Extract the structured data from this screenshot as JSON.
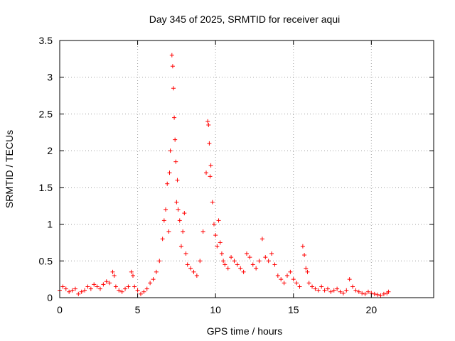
{
  "chart_data": {
    "type": "scatter",
    "title": "Day 345 of 2025, SRMTID for receiver aqui",
    "xlabel": "GPS time / hours",
    "ylabel": "SRMTID / TECUs",
    "xlim": [
      0,
      24
    ],
    "ylim": [
      0,
      3.5
    ],
    "xticks": [
      0,
      5,
      10,
      15,
      20
    ],
    "xtick_labels": [
      "0",
      "5",
      "10",
      "15",
      "20"
    ],
    "yticks": [
      0,
      0.5,
      1,
      1.5,
      2,
      2.5,
      3,
      3.5
    ],
    "ytick_labels": [
      "0",
      "0.5",
      "1",
      "1.5",
      "2",
      "2.5",
      "3",
      "3.5"
    ],
    "grid": true,
    "marker": "+",
    "series": [
      {
        "name": "SRMTID",
        "color": "#ff0000",
        "x": [
          0.0,
          0.2,
          0.4,
          0.6,
          0.8,
          1.0,
          1.2,
          1.4,
          1.6,
          1.8,
          2.0,
          2.2,
          2.4,
          2.6,
          2.8,
          3.0,
          3.2,
          3.4,
          3.5,
          3.6,
          3.8,
          4.0,
          4.2,
          4.4,
          4.6,
          4.7,
          4.8,
          5.0,
          5.2,
          5.4,
          5.6,
          5.8,
          6.0,
          6.2,
          6.4,
          6.6,
          6.7,
          6.8,
          6.9,
          7.0,
          7.05,
          7.1,
          7.2,
          7.25,
          7.3,
          7.35,
          7.4,
          7.45,
          7.5,
          7.55,
          7.6,
          7.7,
          7.8,
          7.9,
          8.0,
          8.1,
          8.2,
          8.4,
          8.6,
          8.8,
          9.0,
          9.2,
          9.4,
          9.5,
          9.55,
          9.6,
          9.65,
          9.7,
          9.8,
          9.9,
          10.0,
          10.1,
          10.2,
          10.3,
          10.4,
          10.5,
          10.6,
          10.8,
          11.0,
          11.2,
          11.4,
          11.6,
          11.8,
          12.0,
          12.2,
          12.4,
          12.6,
          12.8,
          13.0,
          13.2,
          13.4,
          13.6,
          13.8,
          14.0,
          14.2,
          14.4,
          14.6,
          14.8,
          15.0,
          15.2,
          15.4,
          15.6,
          15.7,
          15.8,
          15.9,
          16.0,
          16.2,
          16.4,
          16.6,
          16.8,
          17.0,
          17.2,
          17.4,
          17.6,
          17.8,
          18.0,
          18.2,
          18.4,
          18.6,
          18.8,
          19.0,
          19.2,
          19.4,
          19.6,
          19.8,
          20.0,
          20.2,
          20.4,
          20.6,
          20.8,
          21.0,
          21.1
        ],
        "y": [
          0.1,
          0.15,
          0.12,
          0.08,
          0.1,
          0.12,
          0.05,
          0.08,
          0.1,
          0.15,
          0.12,
          0.18,
          0.15,
          0.12,
          0.18,
          0.22,
          0.2,
          0.35,
          0.3,
          0.15,
          0.1,
          0.08,
          0.12,
          0.15,
          0.35,
          0.3,
          0.15,
          0.1,
          0.05,
          0.08,
          0.12,
          0.2,
          0.25,
          0.35,
          0.5,
          0.8,
          1.05,
          1.2,
          1.55,
          0.9,
          1.7,
          2.0,
          3.3,
          3.15,
          2.85,
          2.45,
          2.15,
          1.85,
          1.3,
          1.6,
          1.2,
          1.05,
          0.7,
          0.9,
          1.15,
          0.6,
          0.45,
          0.4,
          0.35,
          0.3,
          0.5,
          0.9,
          1.7,
          2.4,
          2.35,
          2.1,
          1.65,
          1.8,
          1.3,
          1.0,
          0.85,
          0.7,
          1.05,
          0.75,
          0.6,
          0.5,
          0.45,
          0.4,
          0.55,
          0.5,
          0.45,
          0.4,
          0.35,
          0.6,
          0.55,
          0.45,
          0.4,
          0.5,
          0.8,
          0.55,
          0.5,
          0.6,
          0.45,
          0.3,
          0.25,
          0.2,
          0.3,
          0.35,
          0.25,
          0.2,
          0.15,
          0.7,
          0.58,
          0.4,
          0.35,
          0.2,
          0.15,
          0.12,
          0.1,
          0.15,
          0.1,
          0.12,
          0.08,
          0.1,
          0.12,
          0.08,
          0.06,
          0.1,
          0.25,
          0.15,
          0.1,
          0.08,
          0.06,
          0.05,
          0.08,
          0.06,
          0.05,
          0.04,
          0.03,
          0.05,
          0.06,
          0.08
        ]
      }
    ]
  }
}
